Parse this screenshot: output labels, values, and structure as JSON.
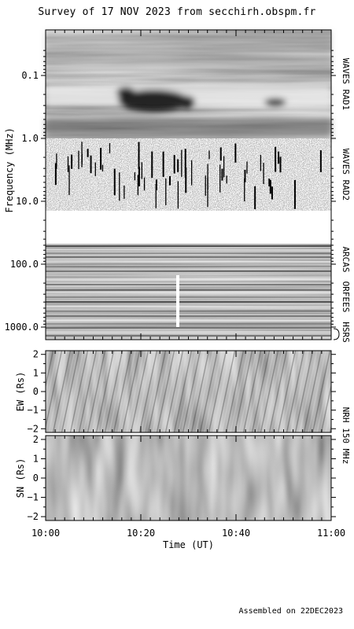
{
  "title": "Survey of 17 NOV 2023 from secchirh.obspm.fr",
  "footer": "Assembled on 22DEC2023",
  "colors": {
    "axis": "#000000",
    "background": "#ffffff"
  },
  "chart_data": [
    {
      "type": "heatmap",
      "name": "dynamic-spectrum",
      "ylabel": "Frequency (MHz)",
      "yscale": "log",
      "ylim": [
        0.03,
        2000
      ],
      "inverted": true,
      "yticks": [
        "0.1",
        "1.0",
        "10.0",
        "100.0",
        "1000.0"
      ],
      "bands": [
        {
          "label": "WAVES RAD1",
          "range": [
            0.03,
            1.0
          ]
        },
        {
          "label": "WAVES RAD2",
          "range": [
            1.0,
            13
          ]
        },
        {
          "label": "ARCAS",
          "range": [
            40,
            80
          ]
        },
        {
          "label": "ORFEES",
          "range": [
            130,
            1000
          ]
        },
        {
          "label": "HSRS",
          "range": [
            800,
            2000
          ]
        }
      ]
    },
    {
      "type": "heatmap",
      "name": "nrh-ew",
      "ylabel": "EW (Rs)",
      "ylim": [
        -2.2,
        2.2
      ],
      "yticks": [
        "2",
        "1",
        "0",
        "−1",
        "−2"
      ]
    },
    {
      "type": "heatmap",
      "name": "nrh-sn",
      "ylabel": "SN (Rs)",
      "ylim": [
        -2.2,
        2.2
      ],
      "yticks": [
        "2",
        "1",
        "0",
        "−1",
        "−2"
      ]
    }
  ],
  "nrh_label": "NRH 150 MHz",
  "xaxis": {
    "label": "Time (UT)",
    "range": [
      "10:00",
      "11:00"
    ],
    "ticks": [
      "10:00",
      "10:20",
      "10:40",
      "11:00"
    ]
  }
}
